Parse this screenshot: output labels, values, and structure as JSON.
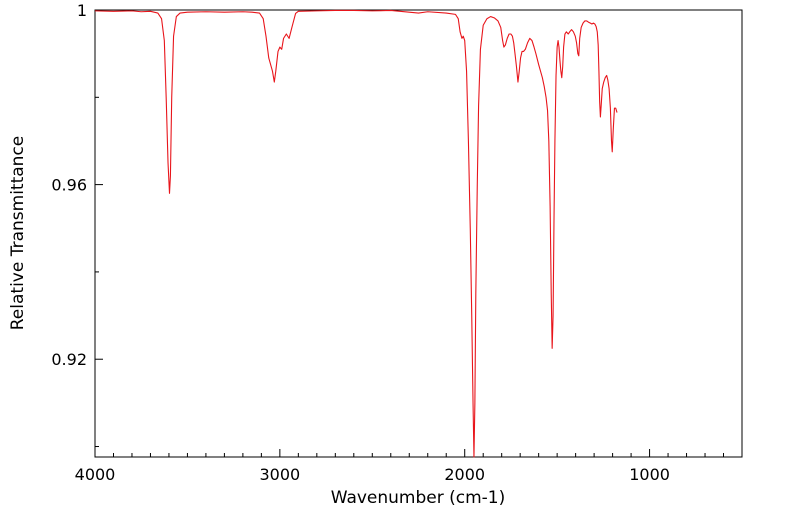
{
  "chart_data": {
    "type": "line",
    "title": "",
    "xlabel": "Wavenumber (cm-1)",
    "ylabel": "Relative Transmittance",
    "xlim": [
      4000,
      500
    ],
    "ylim": [
      0.8976,
      1.0
    ],
    "x_reversed": true,
    "grid": false,
    "legend": "none",
    "x_ticks": [
      {
        "value": 4000,
        "label": "4000"
      },
      {
        "value": 3000,
        "label": "3000"
      },
      {
        "value": 2000,
        "label": "2000"
      },
      {
        "value": 1000,
        "label": "1000"
      }
    ],
    "y_ticks": [
      {
        "value": 1.0,
        "label": "1"
      },
      {
        "value": 0.96,
        "label": "0.96"
      },
      {
        "value": 0.92,
        "label": "0.92"
      }
    ],
    "x_minor_ticks": [
      3900,
      3800,
      3700,
      3600,
      3500,
      3400,
      3300,
      3200,
      3100,
      2900,
      2800,
      2700,
      2600,
      2500,
      2400,
      2300,
      2200,
      2100,
      1900,
      1800,
      1700,
      1600,
      1500,
      1400,
      1300,
      1200,
      1100,
      900,
      800,
      700,
      600
    ],
    "y_minor_ticks": [
      0.98,
      0.94,
      0.9
    ],
    "series": [
      {
        "color": "#e8151b",
        "points": [
          [
            4000,
            0.9998
          ],
          [
            3900,
            0.9997
          ],
          [
            3800,
            0.9998
          ],
          [
            3750,
            0.9996
          ],
          [
            3700,
            0.9997
          ],
          [
            3660,
            0.9993
          ],
          [
            3640,
            0.998
          ],
          [
            3625,
            0.993
          ],
          [
            3615,
            0.98
          ],
          [
            3605,
            0.965
          ],
          [
            3597,
            0.958
          ],
          [
            3592,
            0.962
          ],
          [
            3585,
            0.98
          ],
          [
            3575,
            0.994
          ],
          [
            3560,
            0.9985
          ],
          [
            3540,
            0.9993
          ],
          [
            3500,
            0.9995
          ],
          [
            3400,
            0.9996
          ],
          [
            3300,
            0.9995
          ],
          [
            3200,
            0.9996
          ],
          [
            3150,
            0.9995
          ],
          [
            3110,
            0.9993
          ],
          [
            3090,
            0.998
          ],
          [
            3075,
            0.994
          ],
          [
            3060,
            0.989
          ],
          [
            3040,
            0.986
          ],
          [
            3030,
            0.9835
          ],
          [
            3022,
            0.986
          ],
          [
            3010,
            0.9905
          ],
          [
            3000,
            0.9915
          ],
          [
            2990,
            0.991
          ],
          [
            2980,
            0.9935
          ],
          [
            2965,
            0.9945
          ],
          [
            2950,
            0.9935
          ],
          [
            2935,
            0.996
          ],
          [
            2915,
            0.9992
          ],
          [
            2900,
            0.9997
          ],
          [
            2800,
            0.9998
          ],
          [
            2700,
            0.9999
          ],
          [
            2600,
            0.9999
          ],
          [
            2500,
            0.9998
          ],
          [
            2400,
            0.9999
          ],
          [
            2300,
            0.9995
          ],
          [
            2250,
            0.9993
          ],
          [
            2200,
            0.9996
          ],
          [
            2100,
            0.9993
          ],
          [
            2050,
            0.999
          ],
          [
            2035,
            0.998
          ],
          [
            2025,
            0.995
          ],
          [
            2015,
            0.9935
          ],
          [
            2008,
            0.994
          ],
          [
            2000,
            0.993
          ],
          [
            1990,
            0.986
          ],
          [
            1980,
            0.97
          ],
          [
            1970,
            0.95
          ],
          [
            1962,
            0.93
          ],
          [
            1955,
            0.91
          ],
          [
            1950,
            0.8976
          ],
          [
            1945,
            0.91
          ],
          [
            1940,
            0.935
          ],
          [
            1932,
            0.96
          ],
          [
            1925,
            0.978
          ],
          [
            1915,
            0.991
          ],
          [
            1900,
            0.9965
          ],
          [
            1880,
            0.998
          ],
          [
            1860,
            0.9985
          ],
          [
            1840,
            0.9982
          ],
          [
            1820,
            0.9975
          ],
          [
            1805,
            0.996
          ],
          [
            1795,
            0.993
          ],
          [
            1788,
            0.9915
          ],
          [
            1780,
            0.992
          ],
          [
            1770,
            0.9935
          ],
          [
            1760,
            0.9945
          ],
          [
            1750,
            0.9945
          ],
          [
            1742,
            0.994
          ],
          [
            1735,
            0.9925
          ],
          [
            1728,
            0.99
          ],
          [
            1720,
            0.987
          ],
          [
            1712,
            0.9835
          ],
          [
            1705,
            0.986
          ],
          [
            1698,
            0.989
          ],
          [
            1690,
            0.9905
          ],
          [
            1682,
            0.9905
          ],
          [
            1672,
            0.991
          ],
          [
            1660,
            0.9925
          ],
          [
            1648,
            0.9935
          ],
          [
            1636,
            0.993
          ],
          [
            1625,
            0.9915
          ],
          [
            1615,
            0.99
          ],
          [
            1600,
            0.9875
          ],
          [
            1590,
            0.986
          ],
          [
            1580,
            0.9845
          ],
          [
            1570,
            0.9825
          ],
          [
            1560,
            0.98
          ],
          [
            1552,
            0.977
          ],
          [
            1545,
            0.97
          ],
          [
            1538,
            0.955
          ],
          [
            1532,
            0.935
          ],
          [
            1527,
            0.9225
          ],
          [
            1522,
            0.93
          ],
          [
            1517,
            0.952
          ],
          [
            1512,
            0.97
          ],
          [
            1506,
            0.985
          ],
          [
            1500,
            0.9915
          ],
          [
            1495,
            0.993
          ],
          [
            1490,
            0.9915
          ],
          [
            1485,
            0.9885
          ],
          [
            1480,
            0.986
          ],
          [
            1475,
            0.9845
          ],
          [
            1470,
            0.987
          ],
          [
            1465,
            0.9915
          ],
          [
            1458,
            0.9945
          ],
          [
            1450,
            0.995
          ],
          [
            1440,
            0.9945
          ],
          [
            1432,
            0.995
          ],
          [
            1422,
            0.9955
          ],
          [
            1412,
            0.995
          ],
          [
            1402,
            0.994
          ],
          [
            1395,
            0.9925
          ],
          [
            1388,
            0.99
          ],
          [
            1383,
            0.9895
          ],
          [
            1378,
            0.9935
          ],
          [
            1370,
            0.996
          ],
          [
            1360,
            0.997
          ],
          [
            1350,
            0.9975
          ],
          [
            1340,
            0.9975
          ],
          [
            1330,
            0.9972
          ],
          [
            1320,
            0.997
          ],
          [
            1312,
            0.9968
          ],
          [
            1304,
            0.997
          ],
          [
            1296,
            0.9968
          ],
          [
            1289,
            0.9962
          ],
          [
            1283,
            0.995
          ],
          [
            1278,
            0.992
          ],
          [
            1274,
            0.986
          ],
          [
            1270,
            0.979
          ],
          [
            1266,
            0.9755
          ],
          [
            1262,
            0.978
          ],
          [
            1256,
            0.982
          ],
          [
            1248,
            0.9835
          ],
          [
            1240,
            0.9845
          ],
          [
            1232,
            0.985
          ],
          [
            1226,
            0.984
          ],
          [
            1219,
            0.982
          ],
          [
            1212,
            0.9775
          ],
          [
            1206,
            0.97
          ],
          [
            1202,
            0.9675
          ],
          [
            1196,
            0.973
          ],
          [
            1190,
            0.9775
          ],
          [
            1183,
            0.9775
          ],
          [
            1176,
            0.9765
          ]
        ]
      }
    ]
  }
}
